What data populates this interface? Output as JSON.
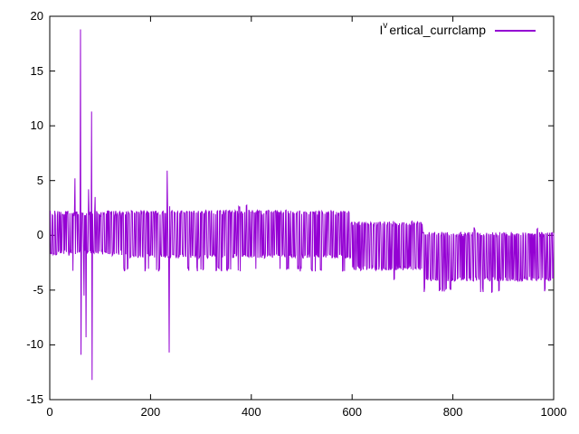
{
  "figure": {
    "background_color": "#ffffff",
    "border_color": "#000000",
    "text_color": "#000000"
  },
  "legend": {
    "label_prefix": "I",
    "label_sup": "v",
    "label_rest": "ertical_currclamp",
    "full_label": "I^v ertical_currclamp",
    "line_color": "#9400d3",
    "position": "top-right-inside"
  },
  "chart_data": {
    "type": "line",
    "title": "",
    "xlabel": "",
    "ylabel": "",
    "xlim": [
      0,
      1000
    ],
    "ylim": [
      -15,
      20
    ],
    "xticks": [
      0,
      200,
      400,
      600,
      800,
      1000
    ],
    "yticks": [
      -15,
      -10,
      -5,
      0,
      5,
      10,
      15,
      20
    ],
    "grid": false,
    "tick_style": "inward-mirrored",
    "legend_position": "top-right",
    "series": [
      {
        "name": "I^v ertical_currclamp",
        "color": "#9400d3",
        "description": "Dense PWM-like noisy current waveform stepping down over time, with large transient spikes near x=60-90 and x=235",
        "envelope_segments": [
          {
            "x_range": [
              1,
              145
            ],
            "high": 2.0,
            "low": -1.6,
            "occasional_low": -3.0,
            "occasional_high": 3.2
          },
          {
            "x_range": [
              145,
              598
            ],
            "high": 2.1,
            "low": -1.9,
            "occasional_low": -3.1,
            "occasional_high": 2.6
          },
          {
            "x_range": [
              598,
              740
            ],
            "high": 1.1,
            "low": -3.0,
            "occasional_low": -4.1,
            "occasional_high": 1.6
          },
          {
            "x_range": [
              740,
              1000
            ],
            "high": 0.1,
            "low": -4.0,
            "occasional_low": -5.0,
            "occasional_high": 0.6
          }
        ],
        "spikes": [
          {
            "x": 50,
            "y": 5.2
          },
          {
            "x": 61,
            "y": 18.8
          },
          {
            "x": 62,
            "y": -10.9
          },
          {
            "x": 68,
            "y": -5.5
          },
          {
            "x": 72,
            "y": -9.3
          },
          {
            "x": 77,
            "y": 4.2
          },
          {
            "x": 83,
            "y": 11.3
          },
          {
            "x": 84,
            "y": -13.2
          },
          {
            "x": 90,
            "y": 3.5
          },
          {
            "x": 233,
            "y": 5.9
          },
          {
            "x": 237,
            "y": -10.7
          }
        ],
        "generator": {
          "seed": 7,
          "n": 1001,
          "start": 1,
          "segments": [
            {
              "from": 1,
              "to": 145,
              "hi": 2.0,
              "lo": -1.6,
              "dip": -3.0,
              "dip_prob": 0.07,
              "hi_spike": 3.2,
              "hi_spike_prob": 0.03,
              "max_hold": 3,
              "jitter": 0.5
            },
            {
              "from": 145,
              "to": 598,
              "hi": 2.1,
              "lo": -1.9,
              "dip": -3.1,
              "dip_prob": 0.22,
              "hi_spike": 2.6,
              "hi_spike_prob": 0.02,
              "max_hold": 3,
              "jitter": 0.4
            },
            {
              "from": 598,
              "to": 740,
              "hi": 1.1,
              "lo": -3.0,
              "dip": -4.1,
              "dip_prob": 0.1,
              "hi_spike": 1.6,
              "hi_spike_prob": 0.02,
              "max_hold": 3,
              "jitter": 0.4
            },
            {
              "from": 740,
              "to": 1001,
              "hi": 0.1,
              "lo": -4.0,
              "dip": -5.0,
              "dip_prob": 0.12,
              "hi_spike": 0.6,
              "hi_spike_prob": 0.02,
              "max_hold": 3,
              "jitter": 0.4
            }
          ]
        }
      }
    ]
  }
}
